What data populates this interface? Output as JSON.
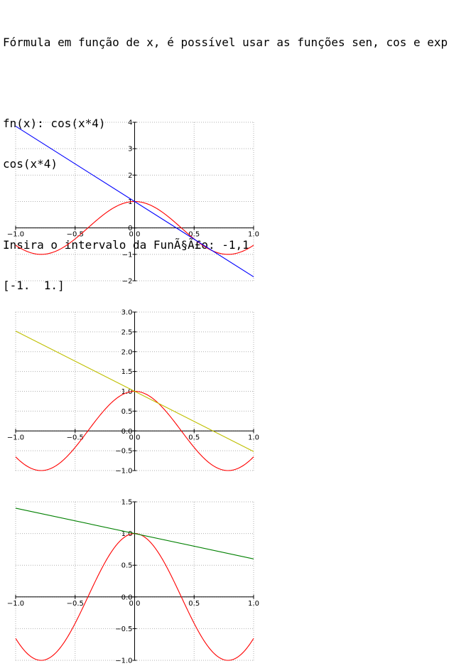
{
  "console": {
    "header": "Fórmula em função de x, é possível usar as funções sen, cos e exp",
    "blank1": "",
    "prompt_fn": "fn(x): cos(x*4)",
    "echo_fn": "cos(x*4)",
    "blank2": "",
    "prompt_interval": "Insira o intervalo da FunÃ§Ã£o: -1,1",
    "echo_interval": "[-1.  1.]"
  },
  "colors": {
    "function_line": "#ff0000",
    "plot1_line": "#0000ff",
    "plot2_line": "#bfbf00",
    "plot3_line": "#008000",
    "grid": "#b0b0b0",
    "axis": "#000000"
  },
  "chart_data": [
    {
      "type": "line",
      "xlim": [
        -1.0,
        1.0
      ],
      "ylim": [
        -2,
        4
      ],
      "grid": true,
      "xticks": [
        "−1.0",
        "−0.5",
        "0.0",
        "0.5",
        "1.0"
      ],
      "yticks": [
        "−2",
        "−1",
        "0",
        "1",
        "2",
        "3",
        "4"
      ],
      "series": [
        {
          "function": "cos(x*4)",
          "x_range": [
            -1,
            1
          ],
          "color": "#ff0000"
        },
        {
          "x": [
            -1.0,
            1.0
          ],
          "y": [
            3.85,
            -1.85
          ],
          "color": "#0000ff"
        }
      ]
    },
    {
      "type": "line",
      "xlim": [
        -1.0,
        1.0
      ],
      "ylim": [
        -1.0,
        3.0
      ],
      "grid": true,
      "xticks": [
        "−1.0",
        "−0.5",
        "0.0",
        "0.5",
        "1.0"
      ],
      "yticks": [
        "−1.0",
        "−0.5",
        "0.0",
        "0.5",
        "1.0",
        "1.5",
        "2.0",
        "2.5",
        "3.0"
      ],
      "series": [
        {
          "function": "cos(x*4)",
          "x_range": [
            -1,
            1
          ],
          "color": "#ff0000"
        },
        {
          "x": [
            -1.0,
            1.0
          ],
          "y": [
            2.52,
            -0.52
          ],
          "color": "#bfbf00"
        }
      ]
    },
    {
      "type": "line",
      "xlim": [
        -1.0,
        1.0
      ],
      "ylim": [
        -1.0,
        1.5
      ],
      "grid": true,
      "xticks": [
        "−1.0",
        "−0.5",
        "0.0",
        "0.5",
        "1.0"
      ],
      "yticks": [
        "−1.0",
        "−0.5",
        "0.0",
        "0.5",
        "1.0",
        "1.5"
      ],
      "series": [
        {
          "function": "cos(x*4)",
          "x_range": [
            -1,
            1
          ],
          "color": "#ff0000"
        },
        {
          "x": [
            -1.0,
            1.0
          ],
          "y": [
            1.4,
            0.6
          ],
          "color": "#008000"
        }
      ]
    }
  ]
}
